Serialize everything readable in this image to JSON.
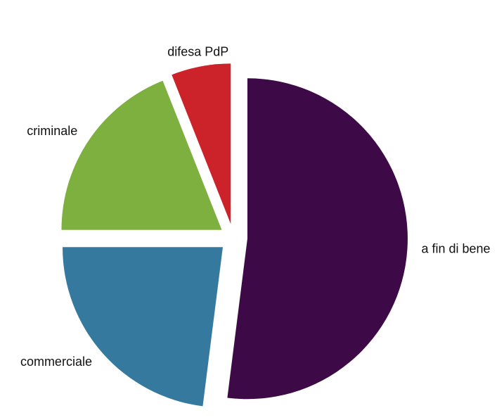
{
  "chart_data": {
    "type": "pie",
    "categories": [
      "a fin di bene",
      "commerciale",
      "criminale",
      "difesa PdP"
    ],
    "values": [
      52,
      23,
      19,
      6
    ],
    "colors": [
      "#3d0a47",
      "#357a9e",
      "#7db03f",
      "#cc2229"
    ],
    "exploded": true
  }
}
